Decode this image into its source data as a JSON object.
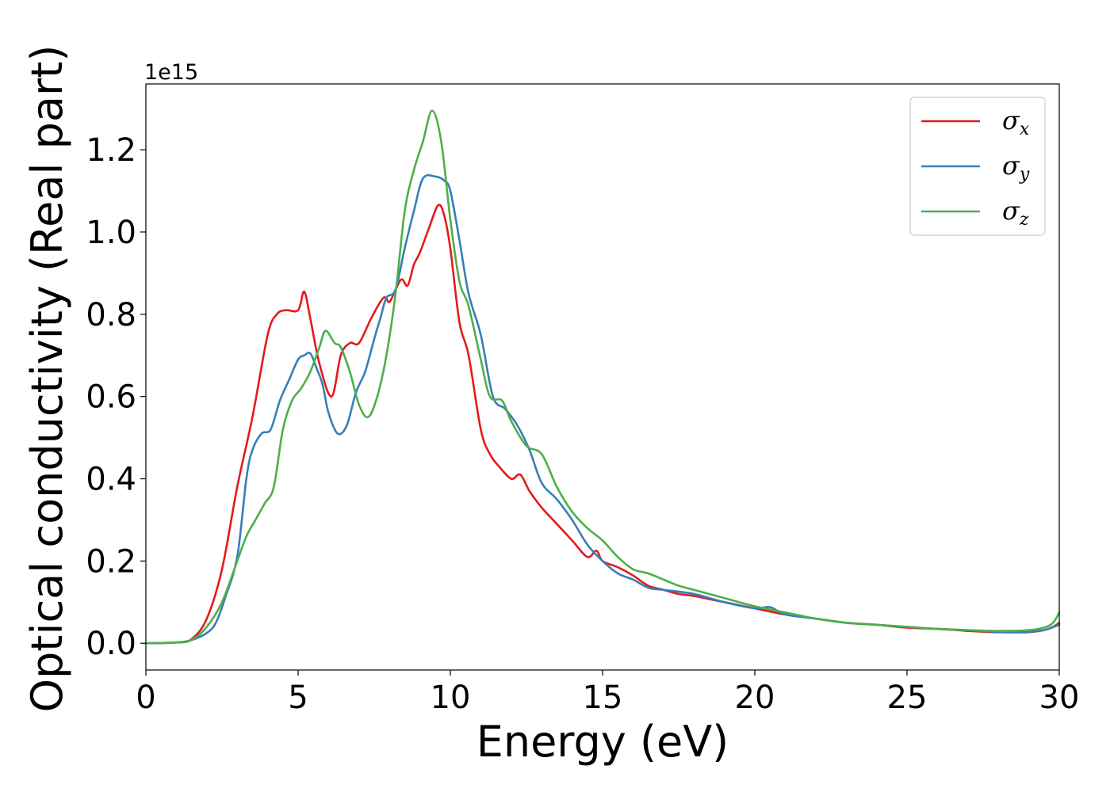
{
  "chart_data": {
    "type": "line",
    "title": "",
    "xlabel": "Energy (eV)",
    "ylabel": "Optical conductivity (Real part)",
    "y_offset_label": "1e15",
    "xlim": [
      0,
      30
    ],
    "ylim": [
      -0.065,
      1.36
    ],
    "xticks": [
      0,
      5,
      10,
      15,
      20,
      25,
      30
    ],
    "xtick_labels": [
      "0",
      "5",
      "10",
      "15",
      "20",
      "25",
      "30"
    ],
    "yticks": [
      0.0,
      0.2,
      0.4,
      0.6,
      0.8,
      1.0,
      1.2
    ],
    "ytick_labels": [
      "0.0",
      "0.2",
      "0.4",
      "0.6",
      "0.8",
      "1.0",
      "1.2"
    ],
    "grid": false,
    "legend_position": "top-right",
    "series": [
      {
        "name": "σx",
        "symbol": "σ",
        "subscript": "x",
        "color": "#e41a1c",
        "x": [
          0,
          1,
          1.5,
          2,
          2.5,
          3,
          3.5,
          4,
          4.3,
          4.6,
          5.0,
          5.2,
          5.4,
          5.7,
          6.1,
          6.4,
          6.7,
          7.0,
          7.4,
          7.8,
          8.0,
          8.2,
          8.4,
          8.6,
          8.8,
          9.0,
          9.3,
          9.6,
          9.8,
          10.0,
          10.3,
          10.6,
          11.0,
          11.3,
          11.6,
          12.0,
          12.3,
          12.6,
          13.0,
          13.5,
          14.0,
          14.5,
          14.8,
          15.0,
          15.5,
          16.0,
          16.5,
          17.0,
          17.5,
          18,
          19,
          20,
          21,
          22,
          23,
          24,
          25,
          26,
          27,
          28,
          29,
          29.5,
          29.8,
          30
        ],
        "values": [
          0.0,
          0.002,
          0.01,
          0.06,
          0.18,
          0.38,
          0.55,
          0.75,
          0.8,
          0.81,
          0.81,
          0.855,
          0.79,
          0.68,
          0.6,
          0.7,
          0.73,
          0.73,
          0.79,
          0.84,
          0.83,
          0.86,
          0.885,
          0.87,
          0.92,
          0.95,
          1.01,
          1.065,
          1.04,
          0.96,
          0.78,
          0.7,
          0.52,
          0.46,
          0.43,
          0.4,
          0.41,
          0.37,
          0.33,
          0.29,
          0.25,
          0.21,
          0.225,
          0.2,
          0.185,
          0.165,
          0.14,
          0.13,
          0.12,
          0.115,
          0.1,
          0.085,
          0.07,
          0.06,
          0.05,
          0.045,
          0.038,
          0.035,
          0.03,
          0.027,
          0.027,
          0.032,
          0.04,
          0.05
        ]
      },
      {
        "name": "σy",
        "symbol": "σ",
        "subscript": "y",
        "color": "#377eb8",
        "x": [
          0,
          1,
          1.5,
          2,
          2.3,
          2.6,
          3.0,
          3.3,
          3.5,
          3.8,
          4.1,
          4.4,
          4.7,
          5.0,
          5.2,
          5.4,
          5.6,
          5.8,
          6.0,
          6.3,
          6.6,
          6.9,
          7.2,
          7.5,
          7.7,
          7.9,
          8.2,
          8.5,
          8.8,
          9.1,
          9.5,
          9.8,
          10.0,
          10.3,
          10.6,
          11.0,
          11.4,
          11.8,
          12.2,
          12.6,
          13.0,
          13.5,
          14.0,
          14.5,
          15.0,
          15.5,
          16.0,
          16.5,
          17,
          18,
          19,
          20,
          20.5,
          21,
          22,
          23,
          24,
          25,
          26,
          27,
          28,
          29,
          29.5,
          30
        ],
        "values": [
          0.0,
          0.002,
          0.008,
          0.025,
          0.05,
          0.11,
          0.21,
          0.4,
          0.47,
          0.51,
          0.52,
          0.59,
          0.64,
          0.69,
          0.7,
          0.705,
          0.67,
          0.63,
          0.56,
          0.51,
          0.53,
          0.61,
          0.66,
          0.74,
          0.79,
          0.84,
          0.86,
          0.96,
          1.05,
          1.13,
          1.135,
          1.125,
          1.1,
          0.98,
          0.85,
          0.75,
          0.6,
          0.57,
          0.53,
          0.47,
          0.39,
          0.35,
          0.3,
          0.24,
          0.2,
          0.17,
          0.155,
          0.135,
          0.13,
          0.12,
          0.1,
          0.085,
          0.088,
          0.07,
          0.06,
          0.05,
          0.045,
          0.04,
          0.035,
          0.032,
          0.028,
          0.028,
          0.032,
          0.045
        ]
      },
      {
        "name": "σz",
        "symbol": "σ",
        "subscript": "z",
        "color": "#4daf4a",
        "x": [
          0,
          1,
          1.5,
          2,
          2.5,
          3.0,
          3.3,
          3.6,
          3.9,
          4.2,
          4.5,
          4.8,
          5.1,
          5.4,
          5.7,
          5.9,
          6.2,
          6.4,
          6.7,
          7.0,
          7.3,
          7.6,
          7.9,
          8.2,
          8.5,
          8.8,
          9.1,
          9.4,
          9.7,
          10.0,
          10.3,
          10.6,
          11.0,
          11.3,
          11.7,
          12.0,
          12.5,
          13.0,
          13.5,
          14.0,
          14.5,
          15.0,
          15.5,
          16.0,
          16.5,
          17.0,
          17.5,
          18,
          19,
          20,
          21,
          22,
          23,
          24,
          25,
          26,
          27,
          28,
          29,
          29.5,
          29.8,
          30
        ],
        "values": [
          0.0,
          0.002,
          0.008,
          0.04,
          0.1,
          0.2,
          0.26,
          0.3,
          0.34,
          0.38,
          0.52,
          0.59,
          0.62,
          0.66,
          0.72,
          0.76,
          0.73,
          0.72,
          0.66,
          0.58,
          0.55,
          0.6,
          0.7,
          0.85,
          1.05,
          1.15,
          1.22,
          1.295,
          1.22,
          1.03,
          0.88,
          0.82,
          0.69,
          0.6,
          0.59,
          0.54,
          0.48,
          0.46,
          0.38,
          0.32,
          0.28,
          0.25,
          0.21,
          0.18,
          0.17,
          0.155,
          0.14,
          0.13,
          0.11,
          0.09,
          0.075,
          0.06,
          0.05,
          0.045,
          0.04,
          0.035,
          0.032,
          0.03,
          0.032,
          0.038,
          0.05,
          0.075
        ]
      }
    ]
  }
}
